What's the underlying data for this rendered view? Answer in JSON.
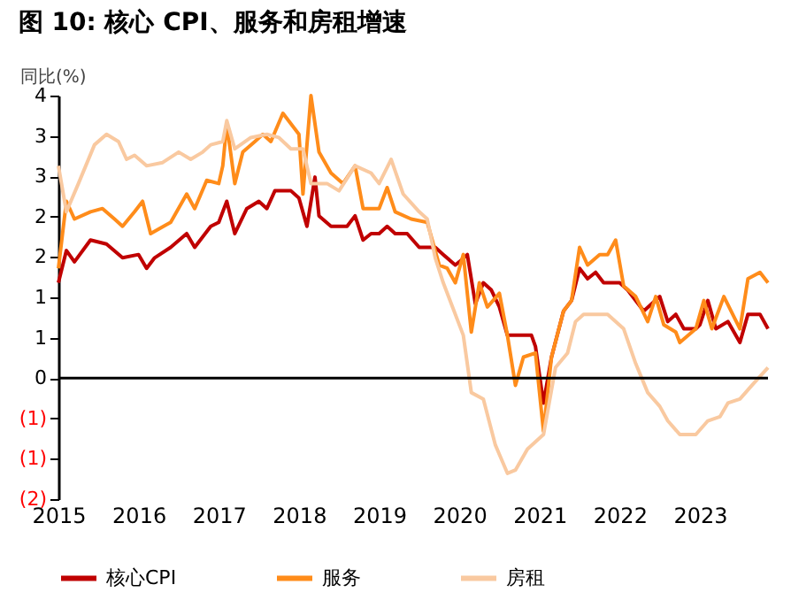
{
  "chart_data": {
    "type": "line",
    "title": "图 10: 核心 CPI、服务和房租增速",
    "ylabel": "同比(%)",
    "xlim": [
      2015,
      2023.85
    ],
    "xticks": [
      2015,
      2016,
      2017,
      2018,
      2019,
      2020,
      2021,
      2022,
      2023
    ],
    "ylim": [
      -1.5,
      3.5
    ],
    "yticks": [
      {
        "value": 3.5,
        "label": "4"
      },
      {
        "value": 3,
        "label": "3"
      },
      {
        "value": 2.5,
        "label": "3"
      },
      {
        "value": 2,
        "label": "2"
      },
      {
        "value": 1.5,
        "label": "2"
      },
      {
        "value": 1,
        "label": "1"
      },
      {
        "value": 0.5,
        "label": "1"
      },
      {
        "value": 0,
        "label": "0"
      },
      {
        "value": -0.5,
        "label": "(1)"
      },
      {
        "value": -1,
        "label": "(1)"
      },
      {
        "value": -1.5,
        "label": "(2)"
      }
    ],
    "grid": false,
    "legend": "bottom",
    "line_style": "solid",
    "marker": "none",
    "ref_lines": [
      {
        "axis": "y",
        "value": 0,
        "color": "#000000"
      }
    ],
    "series": [
      {
        "name": "核心CPI",
        "color": "#c00000",
        "x": [
          2015.0,
          2015.1,
          2015.2,
          2015.4,
          2015.6,
          2015.8,
          2016.0,
          2016.1,
          2016.2,
          2016.4,
          2016.6,
          2016.7,
          2016.9,
          2017.0,
          2017.1,
          2017.2,
          2017.35,
          2017.5,
          2017.6,
          2017.7,
          2017.9,
          2018.0,
          2018.1,
          2018.2,
          2018.25,
          2018.4,
          2018.6,
          2018.7,
          2018.8,
          2018.9,
          2019.0,
          2019.1,
          2019.2,
          2019.35,
          2019.5,
          2019.7,
          2019.8,
          2019.95,
          2020.0,
          2020.1,
          2020.2,
          2020.3,
          2020.4,
          2020.5,
          2020.6,
          2020.9,
          2020.95,
          2021.05,
          2021.15,
          2021.3,
          2021.4,
          2021.5,
          2021.6,
          2021.7,
          2021.8,
          2022.0,
          2022.1,
          2022.3,
          2022.4,
          2022.5,
          2022.6,
          2022.7,
          2022.8,
          2022.95,
          2023.0,
          2023.1,
          2023.2,
          2023.35,
          2023.5,
          2023.6,
          2023.75,
          2023.85
        ],
        "values": [
          1.18,
          1.58,
          1.44,
          1.71,
          1.66,
          1.49,
          1.53,
          1.36,
          1.49,
          1.62,
          1.79,
          1.62,
          1.88,
          1.93,
          2.19,
          1.79,
          2.1,
          2.19,
          2.1,
          2.32,
          2.32,
          2.23,
          1.88,
          2.49,
          2.01,
          1.88,
          1.88,
          2.01,
          1.71,
          1.79,
          1.79,
          1.88,
          1.79,
          1.79,
          1.62,
          1.62,
          1.53,
          1.4,
          1.44,
          1.53,
          0.92,
          1.18,
          1.09,
          0.88,
          0.53,
          0.53,
          0.39,
          -0.31,
          0.26,
          0.83,
          0.96,
          1.36,
          1.23,
          1.31,
          1.18,
          1.18,
          1.09,
          0.83,
          0.92,
          1.01,
          0.7,
          0.79,
          0.61,
          0.61,
          0.66,
          0.96,
          0.61,
          0.7,
          0.44,
          0.79,
          0.79,
          0.61
        ]
      },
      {
        "name": "服务",
        "color": "#ff8c1a",
        "x": [
          2015.0,
          2015.1,
          2015.2,
          2015.4,
          2015.55,
          2015.7,
          2015.8,
          2015.95,
          2016.05,
          2016.15,
          2016.4,
          2016.6,
          2016.7,
          2016.85,
          2017.0,
          2017.05,
          2017.1,
          2017.2,
          2017.3,
          2017.45,
          2017.55,
          2017.65,
          2017.8,
          2018.0,
          2018.05,
          2018.15,
          2018.25,
          2018.4,
          2018.55,
          2018.7,
          2018.8,
          2019.0,
          2019.1,
          2019.2,
          2019.4,
          2019.6,
          2019.75,
          2019.85,
          2019.95,
          2020.05,
          2020.15,
          2020.25,
          2020.35,
          2020.5,
          2020.6,
          2020.7,
          2020.8,
          2020.95,
          2021.05,
          2021.15,
          2021.3,
          2021.4,
          2021.5,
          2021.6,
          2021.75,
          2021.85,
          2021.95,
          2022.05,
          2022.2,
          2022.35,
          2022.45,
          2022.55,
          2022.7,
          2022.75,
          2022.95,
          2023.05,
          2023.15,
          2023.3,
          2023.5,
          2023.6,
          2023.75,
          2023.85
        ],
        "values": [
          1.36,
          2.19,
          1.97,
          2.06,
          2.1,
          1.97,
          1.88,
          2.06,
          2.19,
          1.79,
          1.93,
          2.28,
          2.1,
          2.45,
          2.41,
          2.63,
          3.15,
          2.41,
          2.8,
          2.93,
          3.02,
          2.93,
          3.28,
          3.02,
          2.28,
          3.5,
          2.8,
          2.54,
          2.41,
          2.63,
          2.1,
          2.1,
          2.36,
          2.06,
          1.97,
          1.93,
          1.4,
          1.36,
          1.18,
          1.53,
          0.57,
          1.18,
          0.88,
          1.05,
          0.53,
          -0.09,
          0.26,
          0.31,
          -0.66,
          0.26,
          0.83,
          0.96,
          1.62,
          1.4,
          1.53,
          1.53,
          1.71,
          1.14,
          1.01,
          0.7,
          1.01,
          0.66,
          0.57,
          0.44,
          0.61,
          0.96,
          0.61,
          1.01,
          0.61,
          1.23,
          1.31,
          1.18
        ]
      },
      {
        "name": "房租",
        "color": "#f9c9a0",
        "x": [
          2015.0,
          2015.1,
          2015.25,
          2015.45,
          2015.6,
          2015.75,
          2015.85,
          2015.95,
          2016.1,
          2016.3,
          2016.5,
          2016.65,
          2016.8,
          2016.9,
          2017.05,
          2017.1,
          2017.2,
          2017.4,
          2017.6,
          2017.75,
          2017.9,
          2018.05,
          2018.15,
          2018.35,
          2018.5,
          2018.7,
          2018.9,
          2019.0,
          2019.15,
          2019.3,
          2019.5,
          2019.6,
          2019.7,
          2019.8,
          2019.9,
          2020.05,
          2020.15,
          2020.3,
          2020.45,
          2020.6,
          2020.7,
          2020.85,
          2020.95,
          2021.05,
          2021.2,
          2021.35,
          2021.45,
          2021.55,
          2021.85,
          2022.05,
          2022.2,
          2022.35,
          2022.5,
          2022.6,
          2022.75,
          2022.95,
          2023.1,
          2023.25,
          2023.35,
          2023.5,
          2023.65,
          2023.85
        ],
        "values": [
          2.63,
          2.06,
          2.41,
          2.89,
          3.02,
          2.93,
          2.71,
          2.76,
          2.63,
          2.67,
          2.8,
          2.71,
          2.8,
          2.89,
          2.93,
          3.19,
          2.84,
          2.98,
          3.02,
          2.98,
          2.84,
          2.84,
          2.41,
          2.41,
          2.32,
          2.63,
          2.54,
          2.41,
          2.71,
          2.28,
          2.06,
          1.97,
          1.49,
          1.18,
          0.92,
          0.53,
          -0.18,
          -0.26,
          -0.83,
          -1.18,
          -1.14,
          -0.88,
          -0.79,
          -0.7,
          0.13,
          0.31,
          0.7,
          0.79,
          0.79,
          0.61,
          0.18,
          -0.18,
          -0.35,
          -0.53,
          -0.7,
          -0.7,
          -0.53,
          -0.48,
          -0.31,
          -0.26,
          -0.09,
          0.13
        ]
      }
    ]
  }
}
